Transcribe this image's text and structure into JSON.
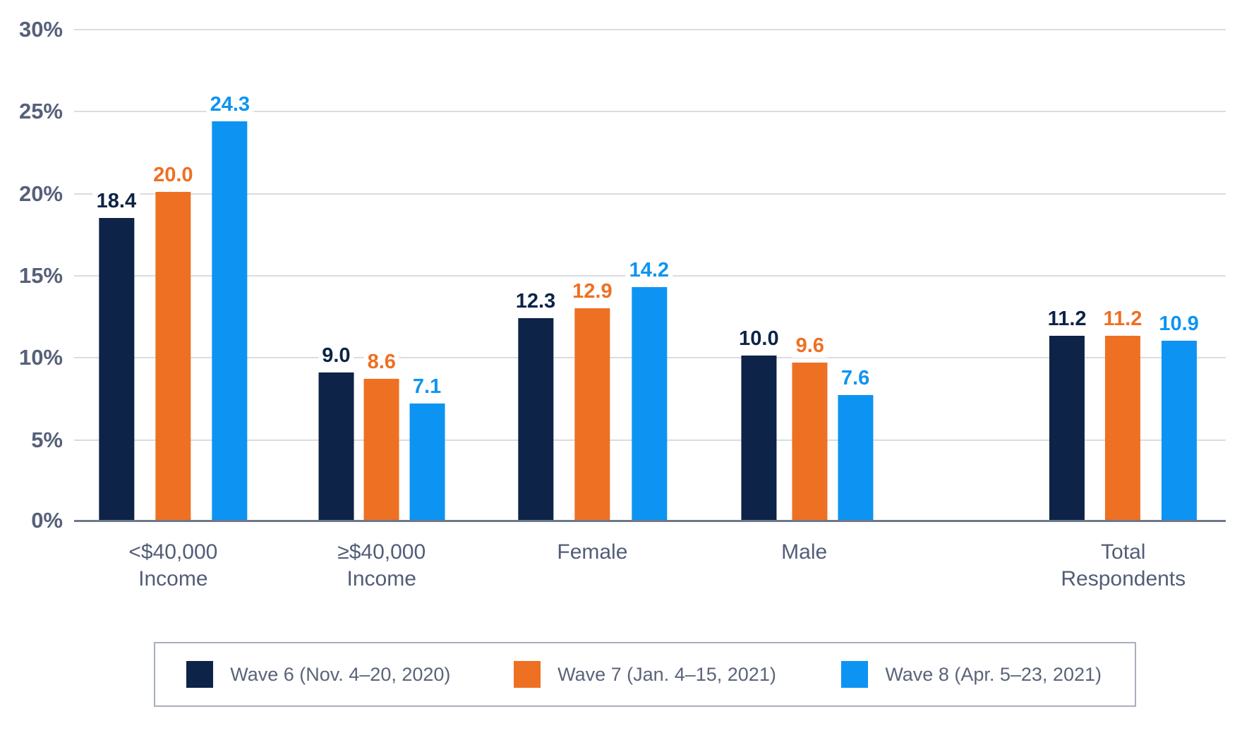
{
  "chart_data": {
    "type": "bar",
    "title": "",
    "xlabel": "",
    "ylabel": "",
    "categories": [
      "<$40,000\nIncome",
      "≥$40,000\nIncome",
      "Female",
      "Male",
      "Total\nRespondents"
    ],
    "series": [
      {
        "name": "Wave 6 (Nov. 4–20, 2020)",
        "color": "#0d2347",
        "values": [
          18.4,
          9.0,
          12.3,
          10.0,
          11.2
        ]
      },
      {
        "name": "Wave 7 (Jan. 4–15, 2021)",
        "color": "#ee7023",
        "values": [
          20.0,
          8.6,
          12.9,
          9.6,
          11.2
        ]
      },
      {
        "name": "Wave 8 (Apr. 5–23, 2021)",
        "color": "#0d94f2",
        "values": [
          24.3,
          7.1,
          14.2,
          7.6,
          10.9
        ]
      }
    ],
    "ylim": [
      0,
      30
    ],
    "yticks": [
      0,
      5,
      10,
      15,
      20,
      25,
      30
    ],
    "ytick_labels": [
      "0%",
      "5%",
      "10%",
      "15%",
      "20%",
      "25%",
      "30%"
    ],
    "grid": true,
    "legend_position": "bottom",
    "group_centers_pct": [
      8.6,
      26.7,
      45.0,
      63.4,
      91.1
    ],
    "value_label_decimals": 1
  },
  "colors": {
    "background": "#ffffff",
    "gridline": "#d9dce1",
    "baseline": "#6f7789",
    "axis_text": "#566079",
    "category_text": "#525d76",
    "legend_text": "#5a6478",
    "legend_border": "#a9afbb"
  }
}
